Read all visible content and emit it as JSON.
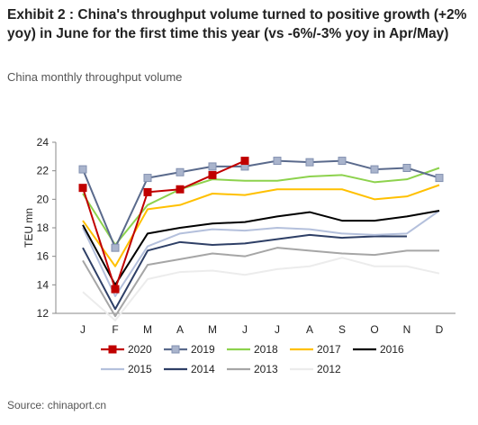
{
  "header": {
    "title": "Exhibit 2 : China's throughput volume turned to positive growth (+2% yoy) in June for the first time this year (vs -6%/-3% yoy in Apr/May)",
    "subtitle": "China monthly throughput volume"
  },
  "footer": {
    "source": "Source: chinaport.cn"
  },
  "chart_data": {
    "type": "line",
    "title": "",
    "xlabel": "",
    "ylabel": "TEU mn",
    "ylim": [
      12,
      24
    ],
    "yticks": [
      12,
      14,
      16,
      18,
      20,
      22,
      24
    ],
    "categories": [
      "J",
      "F",
      "M",
      "A",
      "M",
      "J",
      "J",
      "A",
      "S",
      "O",
      "N",
      "D"
    ],
    "grid": false,
    "legend_position": "bottom",
    "series": [
      {
        "name": "2020",
        "color": "#c00000",
        "width": 2,
        "marker": "square",
        "values": [
          20.8,
          13.7,
          20.5,
          20.7,
          21.7,
          22.7,
          null,
          null,
          null,
          null,
          null,
          null
        ]
      },
      {
        "name": "2019",
        "color": "#5a6a8c",
        "width": 2,
        "marker": "square-light",
        "values": [
          22.1,
          16.6,
          21.5,
          21.9,
          22.3,
          22.3,
          22.7,
          22.6,
          22.7,
          22.1,
          22.2,
          21.5
        ]
      },
      {
        "name": "2018",
        "color": "#8dd24d",
        "width": 2,
        "marker": "none",
        "values": [
          20.4,
          16.8,
          19.6,
          20.7,
          21.4,
          21.3,
          21.3,
          21.6,
          21.7,
          21.2,
          21.4,
          22.2
        ]
      },
      {
        "name": "2017",
        "color": "#ffc000",
        "width": 2,
        "marker": "none",
        "values": [
          18.5,
          15.3,
          19.3,
          19.6,
          20.4,
          20.3,
          20.7,
          20.7,
          20.7,
          20.0,
          20.2,
          21.0
        ]
      },
      {
        "name": "2016",
        "color": "#000000",
        "width": 2,
        "marker": "none",
        "values": [
          18.2,
          14.0,
          17.6,
          18.0,
          18.3,
          18.4,
          18.8,
          19.1,
          18.5,
          18.5,
          18.8,
          19.2
        ]
      },
      {
        "name": "2015",
        "color": "#b4c0dc",
        "width": 2,
        "marker": "none",
        "values": [
          18.0,
          13.2,
          16.7,
          17.6,
          17.9,
          17.8,
          18.0,
          17.9,
          17.6,
          17.5,
          17.6,
          19.2
        ]
      },
      {
        "name": "2014",
        "color": "#2e3f66",
        "width": 2,
        "marker": "none",
        "values": [
          16.6,
          12.3,
          16.4,
          17.0,
          16.8,
          16.9,
          17.2,
          17.5,
          17.3,
          17.4,
          17.4,
          null
        ]
      },
      {
        "name": "2013",
        "color": "#a6a6a6",
        "width": 2,
        "marker": "none",
        "values": [
          15.7,
          11.8,
          15.4,
          15.8,
          16.2,
          16.0,
          16.6,
          16.4,
          16.2,
          16.1,
          16.4,
          16.4
        ]
      },
      {
        "name": "2012",
        "color": "#ececec",
        "width": 2,
        "marker": "none",
        "values": [
          13.5,
          11.5,
          14.4,
          14.9,
          15.0,
          14.7,
          15.1,
          15.3,
          15.9,
          15.3,
          15.3,
          14.8
        ]
      }
    ]
  }
}
